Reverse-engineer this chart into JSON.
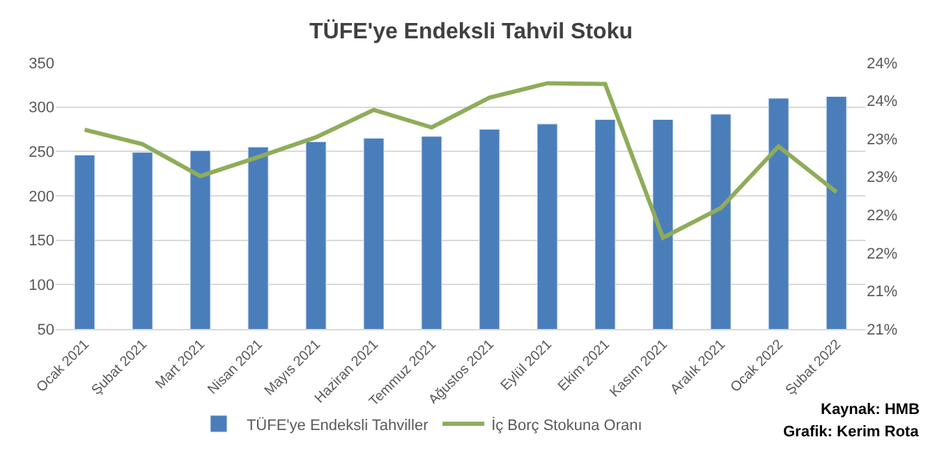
{
  "chart_data": {
    "type": "bar",
    "title": "TÜFE'ye Endeksli Tahvil Stoku",
    "categories": [
      "Ocak 2021",
      "Şubat 2021",
      "Mart 2021",
      "Nisan 2021",
      "Mayıs 2021",
      "Haziran 2021",
      "Temmuz 2021",
      "Ağustos 2021",
      "Eylül 2021",
      "Ekim 2021",
      "Kasım 2021",
      "Aralık 2021",
      "Ocak 2022",
      "Şubat 2022"
    ],
    "series": [
      {
        "name": "TÜFE'ye Endeksli Tahviller",
        "color": "#4a7ebb",
        "values": [
          246,
          249,
          251,
          255,
          261,
          265,
          267,
          275,
          281,
          286,
          286,
          292,
          310,
          312
        ]
      },
      {
        "name": "İç Borç Stokuna Oranı",
        "type": "line",
        "axis": "y2",
        "color": "#8fac5a",
        "values": [
          23.37,
          23.18,
          22.76,
          23.01,
          23.27,
          23.63,
          23.4,
          23.79,
          23.98,
          23.97,
          21.95,
          22.34,
          23.15,
          22.55
        ]
      }
    ],
    "ylim": [
      50,
      350
    ],
    "yticks": [
      50,
      100,
      150,
      200,
      250,
      300,
      350
    ],
    "y2lim": [
      20.75,
      24.25
    ],
    "y2ticks": [
      {
        "value": 20.75,
        "label": "21%"
      },
      {
        "value": 21.25,
        "label": "21%"
      },
      {
        "value": 21.75,
        "label": "22%"
      },
      {
        "value": 22.25,
        "label": "22%"
      },
      {
        "value": 22.75,
        "label": "23%"
      },
      {
        "value": 23.25,
        "label": "23%"
      },
      {
        "value": 23.75,
        "label": "24%"
      },
      {
        "value": 24.25,
        "label": "24%"
      }
    ],
    "annotations": [
      "Kaynak: HMB",
      "Grafik: Kerim Rota"
    ],
    "grid": "y",
    "legend": "bottom",
    "marker": "none",
    "line_style": "solid"
  }
}
